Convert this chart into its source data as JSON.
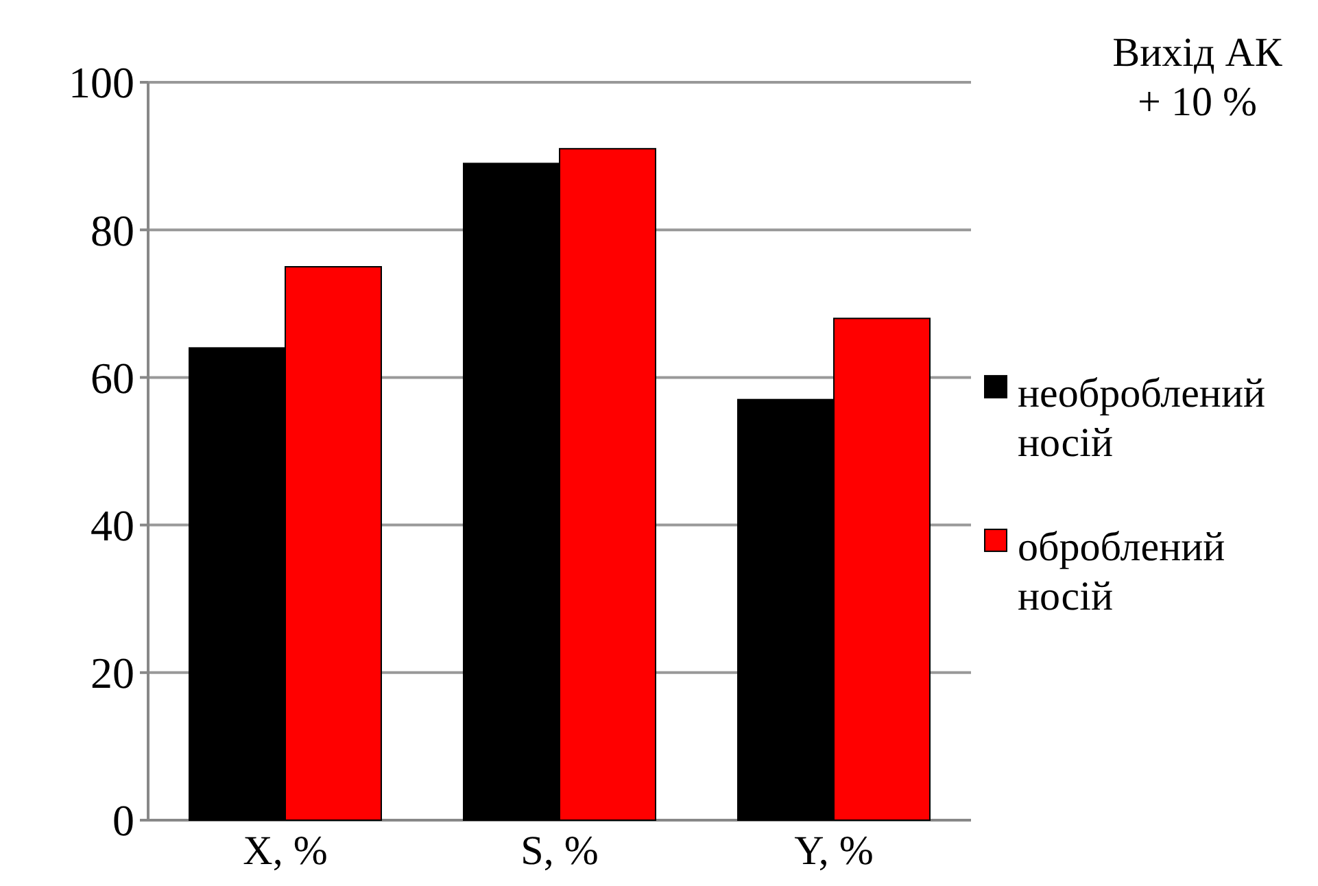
{
  "chart_data": {
    "type": "bar",
    "categories": [
      "X, %",
      "S, %",
      "Y, %"
    ],
    "series": [
      {
        "name": "необроблений носій",
        "color": "#000000",
        "values": [
          64,
          89,
          57
        ]
      },
      {
        "name": "оброблений носій",
        "color": "#ff0000",
        "values": [
          75,
          91,
          68
        ]
      }
    ],
    "ylim": [
      0,
      100
    ],
    "yticks": [
      0,
      20,
      40,
      60,
      80,
      100
    ],
    "grid": "y",
    "legend": "right",
    "annotations": [
      "Вихід АК\n+ 10 %"
    ]
  }
}
